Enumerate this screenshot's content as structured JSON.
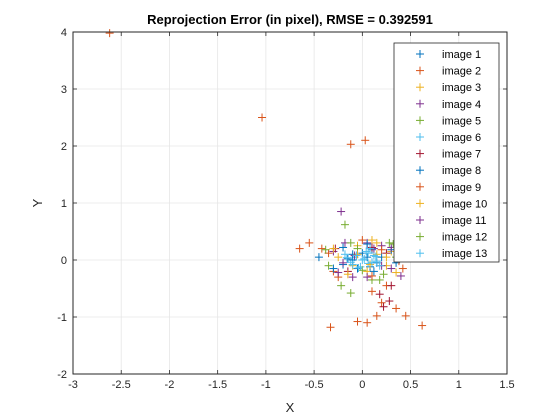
{
  "chart_data": {
    "type": "scatter",
    "title": "Reprojection Error (in pixel), RMSE = 0.392591",
    "xlabel": "X",
    "ylabel": "Y",
    "xlim": [
      -3,
      1.5
    ],
    "ylim": [
      -2,
      4
    ],
    "xticks": [
      "-3",
      "-2.5",
      "-2",
      "-1.5",
      "-1",
      "-0.5",
      "0",
      "0.5",
      "1",
      "1.5"
    ],
    "yticks": [
      "-2",
      "-1",
      "0",
      "1",
      "2",
      "3",
      "4"
    ],
    "grid": true,
    "legend_position": "top-right",
    "marker": "plus",
    "series": [
      {
        "name": "image 1",
        "color": "#0072BD",
        "points": [
          [
            0.05,
            0.05
          ],
          [
            -0.1,
            0.1
          ],
          [
            0.15,
            -0.05
          ],
          [
            -0.2,
            -0.08
          ],
          [
            0.1,
            0.18
          ],
          [
            -0.05,
            -0.15
          ],
          [
            0.2,
            0.05
          ],
          [
            0.0,
            0.12
          ],
          [
            -0.15,
            0.02
          ],
          [
            0.08,
            -0.12
          ]
        ]
      },
      {
        "name": "image 2",
        "color": "#D95319",
        "points": [
          [
            -2.62,
            3.98
          ],
          [
            -1.04,
            2.5
          ],
          [
            0.03,
            2.1
          ],
          [
            -0.12,
            2.03
          ],
          [
            -0.65,
            0.2
          ],
          [
            -0.55,
            0.3
          ],
          [
            0.62,
            -1.15
          ],
          [
            -0.33,
            -1.18
          ],
          [
            0.2,
            -0.75
          ],
          [
            0.15,
            -0.98
          ],
          [
            0.05,
            -1.1
          ],
          [
            -0.05,
            -1.08
          ],
          [
            0.45,
            -0.98
          ],
          [
            0.35,
            -0.85
          ],
          [
            0.25,
            -0.45
          ],
          [
            -0.3,
            -0.2
          ],
          [
            0.1,
            -0.55
          ]
        ]
      },
      {
        "name": "image 3",
        "color": "#EDB120",
        "points": [
          [
            0.1,
            0.35
          ],
          [
            -0.05,
            0.25
          ],
          [
            0.25,
            -0.1
          ],
          [
            -0.25,
            0.05
          ],
          [
            0.05,
            -0.2
          ],
          [
            0.3,
            0.15
          ],
          [
            -0.1,
            -0.1
          ],
          [
            0.15,
            0.1
          ]
        ]
      },
      {
        "name": "image 4",
        "color": "#7E2F8E",
        "points": [
          [
            -0.22,
            0.85
          ],
          [
            0.4,
            -0.28
          ],
          [
            -0.3,
            0.15
          ],
          [
            0.2,
            0.25
          ],
          [
            -0.1,
            -0.3
          ],
          [
            0.05,
            0.3
          ],
          [
            0.3,
            -0.15
          ],
          [
            -0.2,
            -0.05
          ]
        ]
      },
      {
        "name": "image 5",
        "color": "#77AC30",
        "points": [
          [
            -0.18,
            0.62
          ],
          [
            -0.12,
            -0.58
          ],
          [
            0.28,
            0.3
          ],
          [
            -0.35,
            -0.1
          ],
          [
            0.1,
            -0.35
          ],
          [
            0.22,
            -0.25
          ],
          [
            -0.05,
            0.2
          ],
          [
            0.35,
            0.05
          ]
        ]
      },
      {
        "name": "image 6",
        "color": "#4DBEEE",
        "points": [
          [
            0.0,
            0.0
          ],
          [
            -0.08,
            0.05
          ],
          [
            0.06,
            -0.06
          ],
          [
            0.12,
            0.08
          ],
          [
            -0.12,
            -0.04
          ],
          [
            0.04,
            0.15
          ],
          [
            -0.02,
            -0.12
          ],
          [
            0.15,
            -0.02
          ],
          [
            -0.18,
            0.1
          ]
        ]
      },
      {
        "name": "image 7",
        "color": "#A2142F",
        "points": [
          [
            0.28,
            -0.72
          ],
          [
            0.3,
            -0.45
          ],
          [
            0.22,
            -0.82
          ],
          [
            0.18,
            -0.6
          ],
          [
            -0.28,
            0.2
          ],
          [
            0.1,
            0.22
          ],
          [
            -0.15,
            -0.2
          ],
          [
            0.25,
            0.12
          ]
        ]
      },
      {
        "name": "image 8",
        "color": "#0072BD",
        "points": [
          [
            -0.45,
            0.05
          ],
          [
            0.3,
            0.18
          ],
          [
            -0.2,
            0.22
          ],
          [
            0.12,
            -0.2
          ],
          [
            0.35,
            -0.05
          ],
          [
            -0.3,
            -0.15
          ],
          [
            0.05,
            0.28
          ],
          [
            -0.1,
            0.0
          ]
        ]
      },
      {
        "name": "image 9",
        "color": "#D95319",
        "points": [
          [
            -0.42,
            0.2
          ],
          [
            0.38,
            -0.02
          ],
          [
            -0.25,
            -0.3
          ],
          [
            0.2,
            0.18
          ],
          [
            0.42,
            -0.15
          ],
          [
            -0.35,
            0.12
          ],
          [
            0.1,
            -0.28
          ],
          [
            0.0,
            0.35
          ]
        ]
      },
      {
        "name": "image 10",
        "color": "#EDB120",
        "points": [
          [
            0.15,
            0.3
          ],
          [
            -0.3,
            0.2
          ],
          [
            0.35,
            -0.22
          ],
          [
            -0.15,
            -0.25
          ],
          [
            0.25,
            0.05
          ],
          [
            -0.05,
            0.1
          ],
          [
            0.08,
            -0.08
          ]
        ]
      },
      {
        "name": "image 11",
        "color": "#7E2F8E",
        "points": [
          [
            0.2,
            -0.1
          ],
          [
            -0.18,
            0.3
          ],
          [
            0.3,
            0.22
          ],
          [
            -0.25,
            -0.22
          ],
          [
            0.05,
            -0.3
          ],
          [
            0.12,
            0.2
          ],
          [
            -0.08,
            0.08
          ]
        ]
      },
      {
        "name": "image 12",
        "color": "#77AC30",
        "points": [
          [
            -0.22,
            -0.45
          ],
          [
            0.32,
            0.28
          ],
          [
            -0.38,
            0.18
          ],
          [
            0.18,
            -0.35
          ],
          [
            0.4,
            0.1
          ],
          [
            -0.12,
            0.3
          ],
          [
            0.0,
            -0.18
          ]
        ]
      },
      {
        "name": "image 13",
        "color": "#4DBEEE",
        "points": [
          [
            0.02,
            0.02
          ],
          [
            -0.06,
            0.08
          ],
          [
            0.1,
            -0.04
          ],
          [
            0.06,
            0.12
          ],
          [
            -0.1,
            -0.08
          ],
          [
            0.14,
            0.06
          ],
          [
            -0.04,
            -0.14
          ],
          [
            0.18,
            -0.1
          ],
          [
            -0.16,
            0.04
          ],
          [
            0.08,
            0.2
          ]
        ]
      }
    ]
  }
}
